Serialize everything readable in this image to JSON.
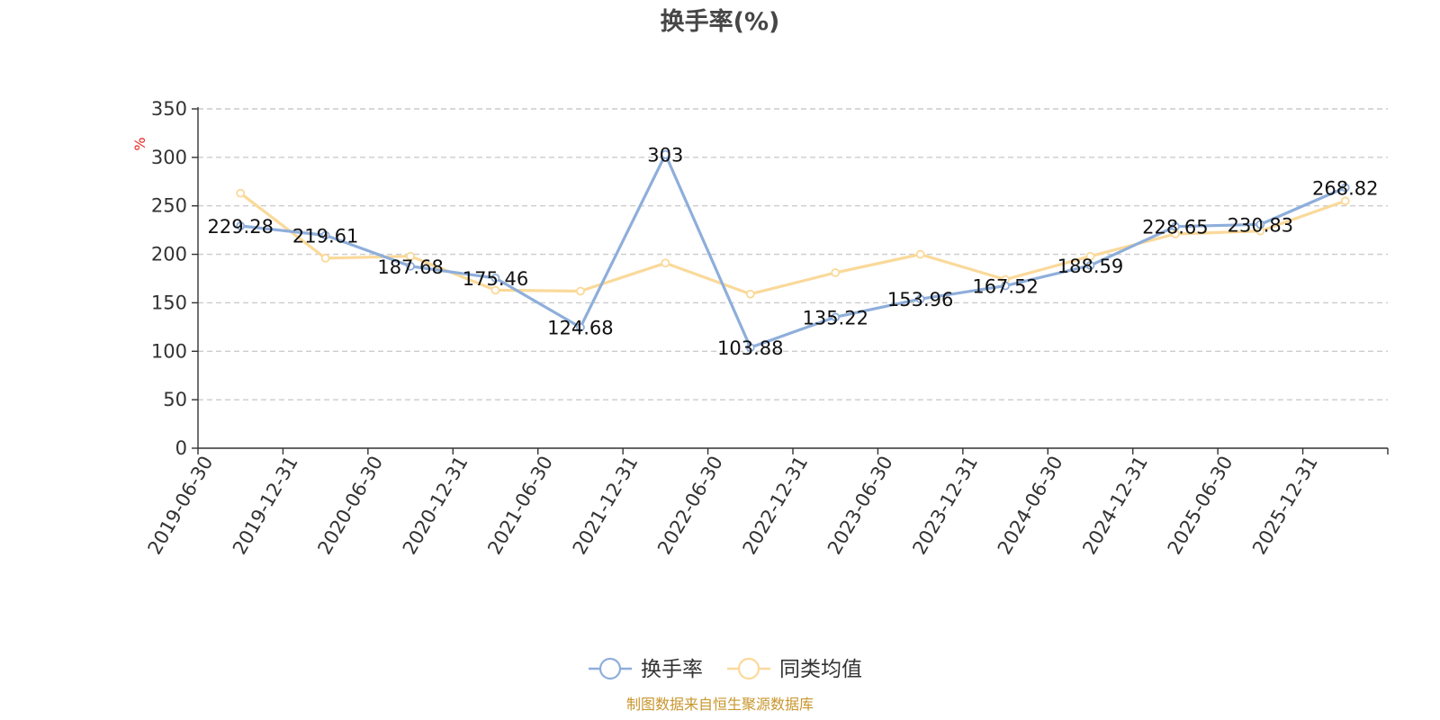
{
  "chart_data": {
    "type": "line",
    "title": "换手率(%)",
    "ylabel": "%",
    "ylim": [
      0,
      350
    ],
    "yticks": [
      0,
      50,
      100,
      150,
      200,
      250,
      300,
      350
    ],
    "grid": true,
    "legend_position": "bottom-center",
    "categories": [
      "2019-06-30",
      "2019-12-31",
      "2020-06-30",
      "2020-12-31",
      "2021-06-30",
      "2021-12-31",
      "2022-06-30",
      "2022-12-31",
      "2023-06-30",
      "2023-12-31",
      "2024-06-30",
      "2024-12-31",
      "2025-06-30",
      "2025-12-31"
    ],
    "series": [
      {
        "name": "换手率",
        "color": "#8eaedb",
        "labels": [
          "229.28",
          "219.61",
          "187.68",
          "175.46",
          "124.68",
          "303",
          "103.88",
          "135.22",
          "153.96",
          "167.52",
          "188.59",
          "228.65",
          "230.83",
          "268.82"
        ],
        "values": [
          229.28,
          219.61,
          187.68,
          175.46,
          124.68,
          303,
          103.88,
          135.22,
          153.96,
          167.52,
          188.59,
          228.65,
          230.83,
          268.82
        ]
      },
      {
        "name": "同类均值",
        "color": "#fad99a",
        "values": [
          263,
          196,
          198,
          163,
          162,
          191,
          159,
          181,
          200,
          174,
          198,
          221,
          224,
          255
        ]
      }
    ]
  },
  "source_text": "制图数据来自恒生聚源数据库"
}
